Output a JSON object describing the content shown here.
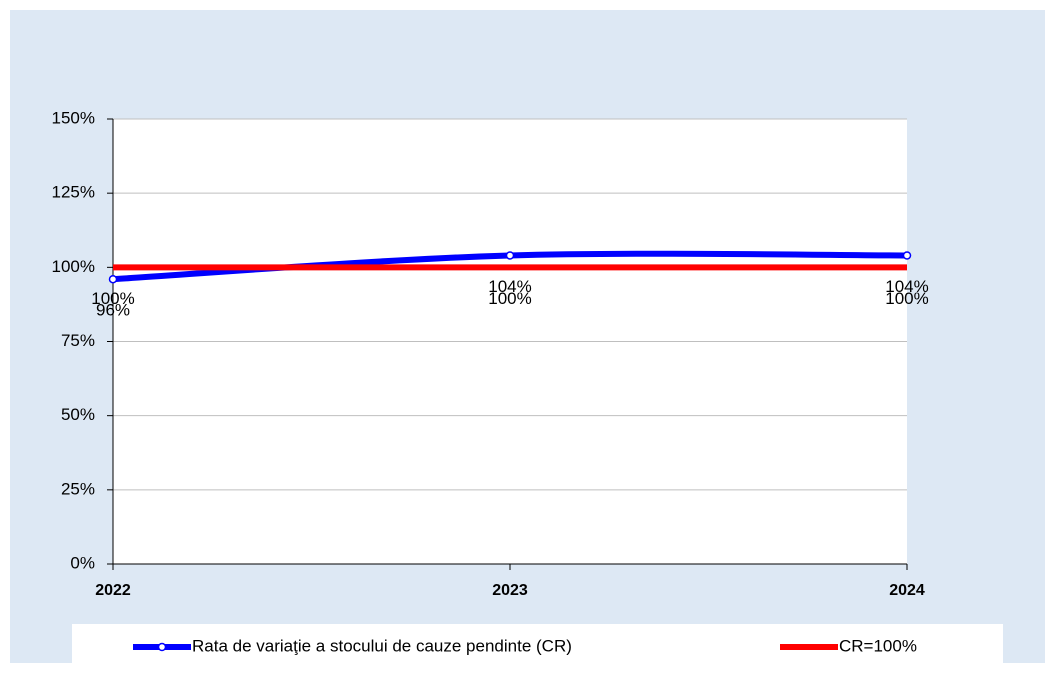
{
  "chart_data": {
    "type": "line",
    "categories": [
      "2022",
      "2023",
      "2024"
    ],
    "series": [
      {
        "name": "Rata de variaţie a stocului de cauze pendinte (CR)",
        "color": "#0000ff",
        "values": [
          96,
          104,
          104
        ],
        "value_labels": [
          "96%",
          "104%",
          "104%"
        ]
      },
      {
        "name": "CR=100%",
        "color": "#ff0000",
        "values": [
          100,
          100,
          100
        ],
        "value_labels": [
          "100%",
          "100%",
          "100%"
        ]
      }
    ],
    "ylim": [
      0,
      150
    ],
    "yticks": [
      {
        "value": 0,
        "label": "0%"
      },
      {
        "value": 25,
        "label": "25%"
      },
      {
        "value": 50,
        "label": "50%"
      },
      {
        "value": 75,
        "label": "75%"
      },
      {
        "value": 100,
        "label": "100%"
      },
      {
        "value": 125,
        "label": "125%"
      },
      {
        "value": 150,
        "label": "150%"
      }
    ],
    "grid": true
  }
}
